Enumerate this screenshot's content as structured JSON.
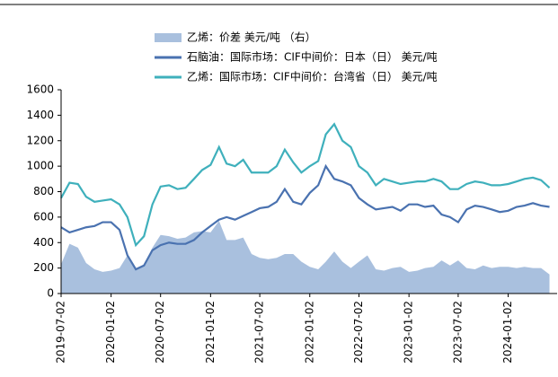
{
  "chart_data": {
    "type": "line",
    "x": [
      "2019-07-02",
      "2019-08-02",
      "2019-09-02",
      "2019-10-02",
      "2019-11-02",
      "2019-12-02",
      "2020-01-02",
      "2020-02-02",
      "2020-03-02",
      "2020-04-02",
      "2020-05-02",
      "2020-06-02",
      "2020-07-02",
      "2020-08-02",
      "2020-09-02",
      "2020-10-02",
      "2020-11-02",
      "2020-12-02",
      "2021-01-02",
      "2021-02-02",
      "2021-03-02",
      "2021-04-02",
      "2021-05-02",
      "2021-06-02",
      "2021-07-02",
      "2021-08-02",
      "2021-09-02",
      "2021-10-02",
      "2021-11-02",
      "2021-12-02",
      "2022-01-02",
      "2022-02-02",
      "2022-03-02",
      "2022-04-02",
      "2022-05-02",
      "2022-06-02",
      "2022-07-02",
      "2022-08-02",
      "2022-09-02",
      "2022-10-02",
      "2022-11-02",
      "2022-12-02",
      "2023-01-02",
      "2023-02-02",
      "2023-03-02",
      "2023-04-02",
      "2023-05-02",
      "2023-06-02",
      "2023-07-02",
      "2023-08-02",
      "2023-09-02",
      "2023-10-02",
      "2023-11-02",
      "2023-12-02",
      "2024-01-02",
      "2024-02-02",
      "2024-03-02",
      "2024-04-02",
      "2024-05-02",
      "2024-06-02"
    ],
    "series": [
      {
        "name": "乙烯：价差 美元/吨 （右）",
        "kind": "area",
        "color": "#a9c0de",
        "values": [
          230,
          390,
          360,
          240,
          190,
          170,
          180,
          200,
          300,
          190,
          230,
          360,
          460,
          450,
          430,
          440,
          480,
          490,
          480,
          570,
          420,
          420,
          440,
          310,
          280,
          270,
          280,
          310,
          310,
          250,
          210,
          190,
          250,
          330,
          250,
          200,
          250,
          300,
          190,
          180,
          200,
          210,
          170,
          180,
          200,
          210,
          260,
          220,
          260,
          200,
          190,
          220,
          200,
          210,
          210,
          200,
          210,
          200,
          200,
          150
        ]
      },
      {
        "name": "石脑油：国际市场：CIF中间价：日本（日） 美元/吨",
        "kind": "line",
        "color": "#4a72b0",
        "values": [
          520,
          480,
          500,
          520,
          530,
          560,
          560,
          500,
          300,
          190,
          220,
          340,
          380,
          400,
          390,
          390,
          420,
          480,
          530,
          580,
          600,
          580,
          610,
          640,
          670,
          680,
          720,
          820,
          720,
          700,
          790,
          850,
          1000,
          900,
          880,
          850,
          750,
          700,
          660,
          670,
          680,
          650,
          700,
          700,
          680,
          690,
          620,
          600,
          560,
          660,
          690,
          680,
          660,
          640,
          650,
          680,
          690,
          710,
          690,
          680
        ]
      },
      {
        "name": "乙烯：国际市场：CIF中间价：台湾省（日） 美元/吨",
        "kind": "line",
        "color": "#3fb0bc",
        "values": [
          750,
          870,
          860,
          760,
          720,
          730,
          740,
          700,
          600,
          380,
          450,
          700,
          840,
          850,
          820,
          830,
          900,
          970,
          1010,
          1150,
          1020,
          1000,
          1050,
          950,
          950,
          950,
          1000,
          1130,
          1030,
          950,
          1000,
          1040,
          1250,
          1330,
          1200,
          1150,
          1000,
          950,
          850,
          900,
          880,
          860,
          870,
          880,
          880,
          900,
          880,
          820,
          820,
          860,
          880,
          870,
          850,
          850,
          860,
          880,
          900,
          910,
          890,
          830
        ]
      }
    ],
    "xlim": [
      "2019-07-02",
      "2024-06-30"
    ],
    "xticks": [
      "2019-07-02",
      "2020-01-02",
      "2020-07-02",
      "2021-01-02",
      "2021-07-02",
      "2022-01-02",
      "2022-07-02",
      "2023-01-02",
      "2023-07-02",
      "2024-01-02"
    ],
    "ylim": [
      0,
      1600
    ],
    "yticks": [
      0,
      200,
      400,
      600,
      800,
      1000,
      1200,
      1400,
      1600
    ]
  }
}
